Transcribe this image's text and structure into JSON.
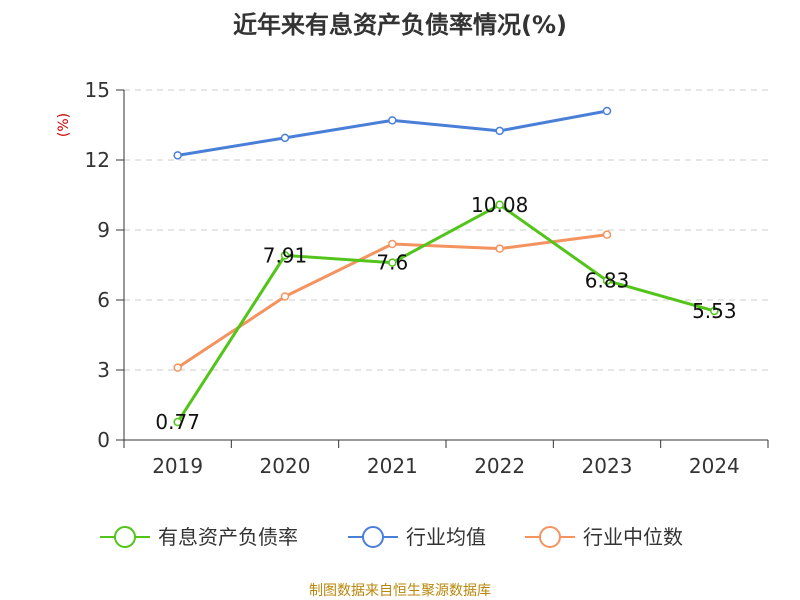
{
  "chart_data": {
    "type": "line",
    "title": "近年来有息资产负债率情况(%)",
    "ylabel": "(%)",
    "xlabel": "",
    "categories": [
      "2019",
      "2020",
      "2021",
      "2022",
      "2023",
      "2024"
    ],
    "ylim": [
      0,
      15
    ],
    "yticks": [
      0,
      3,
      6,
      9,
      12,
      15
    ],
    "grid": true,
    "legend_position": "bottom",
    "series": [
      {
        "name": "有息资产负债率",
        "color": "#52c41a",
        "values": [
          0.77,
          7.91,
          7.6,
          10.08,
          6.83,
          5.53
        ],
        "labels": [
          "0.77",
          "7.91",
          "7.6",
          "10.08",
          "6.83",
          "5.53"
        ]
      },
      {
        "name": "行业均值",
        "color": "#4a7fd8",
        "values": [
          12.2,
          12.95,
          13.7,
          13.25,
          14.1,
          null
        ]
      },
      {
        "name": "行业中位数",
        "color": "#f59360",
        "values": [
          3.1,
          6.15,
          8.4,
          8.2,
          8.8,
          null
        ]
      }
    ]
  },
  "source_text": "制图数据来自恒生聚源数据库"
}
